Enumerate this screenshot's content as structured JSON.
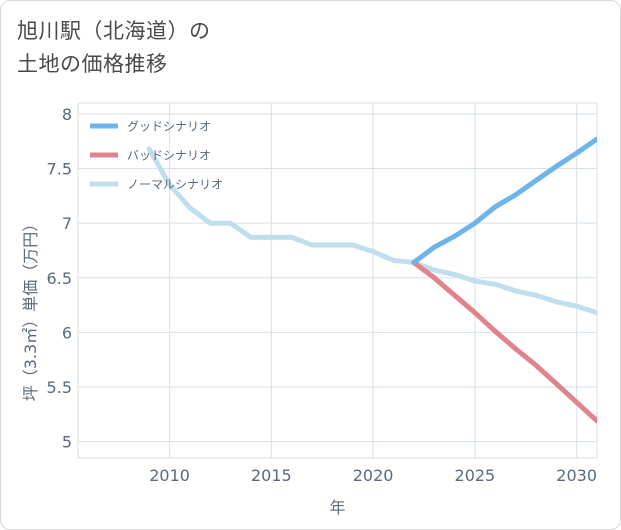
{
  "title_lines": [
    "旭川駅（北海道）の",
    "土地の価格推移"
  ],
  "colors": {
    "good": "#6cb4ea",
    "bad": "#e0838d",
    "normal": "#bfdfee",
    "grid": "#d8e0e8",
    "axis_text": "#5a6a7a"
  },
  "chart_data": {
    "type": "line",
    "xlabel": "年",
    "ylabel": "坪（3.3㎡）単価（万円）",
    "xlim": [
      2005.5,
      2031
    ],
    "ylim": [
      4.85,
      8.1
    ],
    "xticks": [
      2010,
      2015,
      2020,
      2025,
      2030
    ],
    "yticks": [
      5,
      5.5,
      6,
      6.5,
      7,
      7.5,
      8
    ],
    "ytick_labels": [
      "5",
      "5.5",
      "6",
      "6.5",
      "7",
      "7.5",
      "8"
    ],
    "xtick_labels": [
      "2010",
      "2015",
      "2020",
      "2025",
      "2030"
    ],
    "legend_position": "top-left",
    "series": [
      {
        "key": "good",
        "name": "グッドシナリオ",
        "x": [
          2022,
          2023,
          2024,
          2025,
          2026,
          2027,
          2028,
          2029,
          2030,
          2031
        ],
        "y": [
          6.64,
          6.78,
          6.88,
          7.0,
          7.15,
          7.26,
          7.39,
          7.52,
          7.64,
          7.77
        ]
      },
      {
        "key": "bad",
        "name": "バッドシナリオ",
        "x": [
          2022,
          2023,
          2024,
          2025,
          2026,
          2027,
          2028,
          2029,
          2030,
          2031
        ],
        "y": [
          6.64,
          6.5,
          6.34,
          6.18,
          6.01,
          5.85,
          5.7,
          5.53,
          5.36,
          5.19
        ]
      },
      {
        "key": "normal",
        "name": "ノーマルシナリオ",
        "x": [
          2009,
          2010,
          2011,
          2012,
          2013,
          2014,
          2015,
          2016,
          2017,
          2018,
          2019,
          2020,
          2021,
          2022,
          2023,
          2024,
          2025,
          2026,
          2027,
          2028,
          2029,
          2030,
          2031
        ],
        "y": [
          7.68,
          7.35,
          7.14,
          7.0,
          7.0,
          6.87,
          6.87,
          6.87,
          6.8,
          6.8,
          6.8,
          6.74,
          6.66,
          6.64,
          6.57,
          6.53,
          6.47,
          6.44,
          6.38,
          6.34,
          6.28,
          6.24,
          6.18
        ]
      }
    ]
  }
}
